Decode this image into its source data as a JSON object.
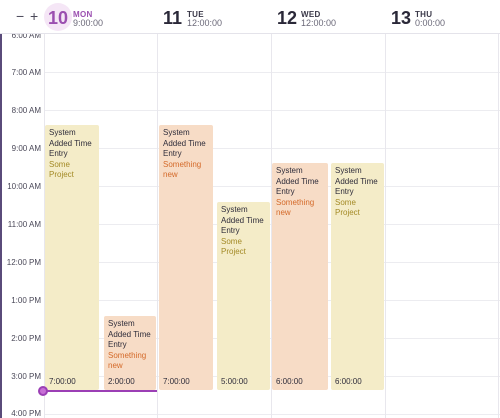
{
  "toolbar": {
    "zoom_out": "−",
    "zoom_in": "+"
  },
  "days": [
    {
      "num": "10",
      "name": "MON",
      "time": "9:00:00"
    },
    {
      "num": "11",
      "name": "TUE",
      "time": "12:00:00"
    },
    {
      "num": "12",
      "name": "WED",
      "time": "12:00:00"
    },
    {
      "num": "13",
      "name": "THU",
      "time": "0:00:00"
    }
  ],
  "hours": [
    "6:00 AM",
    "7:00 AM",
    "8:00 AM",
    "9:00 AM",
    "10:00 AM",
    "11:00 AM",
    "12:00 PM",
    "1:00 PM",
    "2:00 PM",
    "3:00 PM",
    "4:00 PM"
  ],
  "events": [
    {
      "title": "System Added Time Entry",
      "project": "Some Project",
      "duration": "7:00:00"
    },
    {
      "title": "System Added Time Entry",
      "project": "Something new",
      "duration": "2:00:00"
    },
    {
      "title": "System Added Time Entry",
      "project": "Something new",
      "duration": "7:00:00"
    },
    {
      "title": "System Added Time Entry",
      "project": "Some Project",
      "duration": "5:00:00"
    },
    {
      "title": "System Added Time Entry",
      "project": "Something new",
      "duration": "6:00:00"
    },
    {
      "title": "System Added Time Entry",
      "project": "Some Project",
      "duration": "6:00:00"
    }
  ],
  "colors": {
    "project_yellow": "#f4ecc8",
    "project_orange": "#f7dcc6",
    "now_indicator": "#9b3fb5",
    "today_accent": "#9b4fb0"
  }
}
